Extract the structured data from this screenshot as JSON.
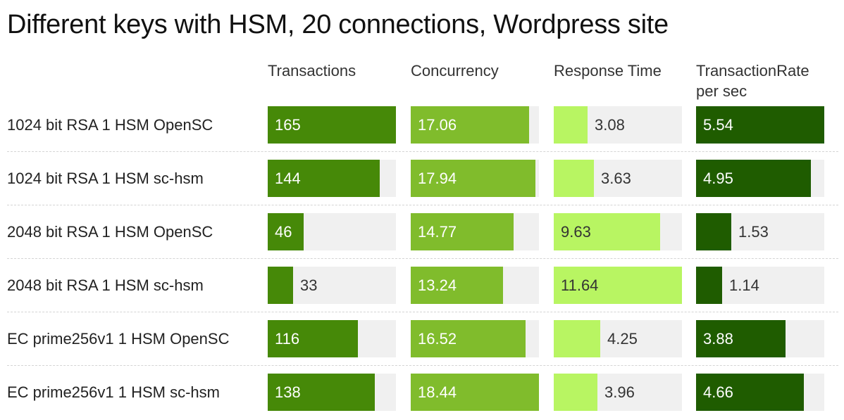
{
  "chart_data": {
    "type": "bar",
    "title": "Different keys with HSM, 20 connections, Wordpress site",
    "categories": [
      "1024 bit RSA 1 HSM OpenSC",
      "1024 bit RSA 1 HSM sc-hsm",
      "2048 bit RSA 1 HSM OpenSC",
      "2048 bit RSA 1 HSM sc-hsm",
      "EC prime256v1 1 HSM OpenSC",
      "EC prime256v1 1 HSM sc-hsm"
    ],
    "series": [
      {
        "name": "Transactions",
        "color": "#468908",
        "values": [
          165,
          144,
          46,
          33,
          116,
          138
        ],
        "labels": [
          "165",
          "144",
          "46",
          "33",
          "116",
          "138"
        ],
        "max": 165
      },
      {
        "name": "Concurrency",
        "color": "#80bc2c",
        "values": [
          17.06,
          17.94,
          14.77,
          13.24,
          16.52,
          18.44
        ],
        "labels": [
          "17.06",
          "17.94",
          "14.77",
          "13.24",
          "16.52",
          "18.44"
        ],
        "max": 18.44
      },
      {
        "name": "Response Time",
        "color": "#b8f562",
        "values": [
          3.08,
          3.63,
          9.63,
          11.64,
          4.25,
          3.96
        ],
        "labels": [
          "3.08",
          "3.63",
          "9.63",
          "11.64",
          "4.25",
          "3.96"
        ],
        "max": 11.64
      },
      {
        "name": "TransactionRate\nper sec",
        "color": "#1f5c00",
        "values": [
          5.54,
          4.95,
          1.53,
          1.14,
          3.88,
          4.66
        ],
        "labels": [
          "5.54",
          "4.95",
          "1.53",
          "1.14",
          "3.88",
          "4.66"
        ],
        "max": 5.54
      }
    ],
    "track_color": "#f0f0f0",
    "grid": false,
    "legend": "column headers"
  }
}
